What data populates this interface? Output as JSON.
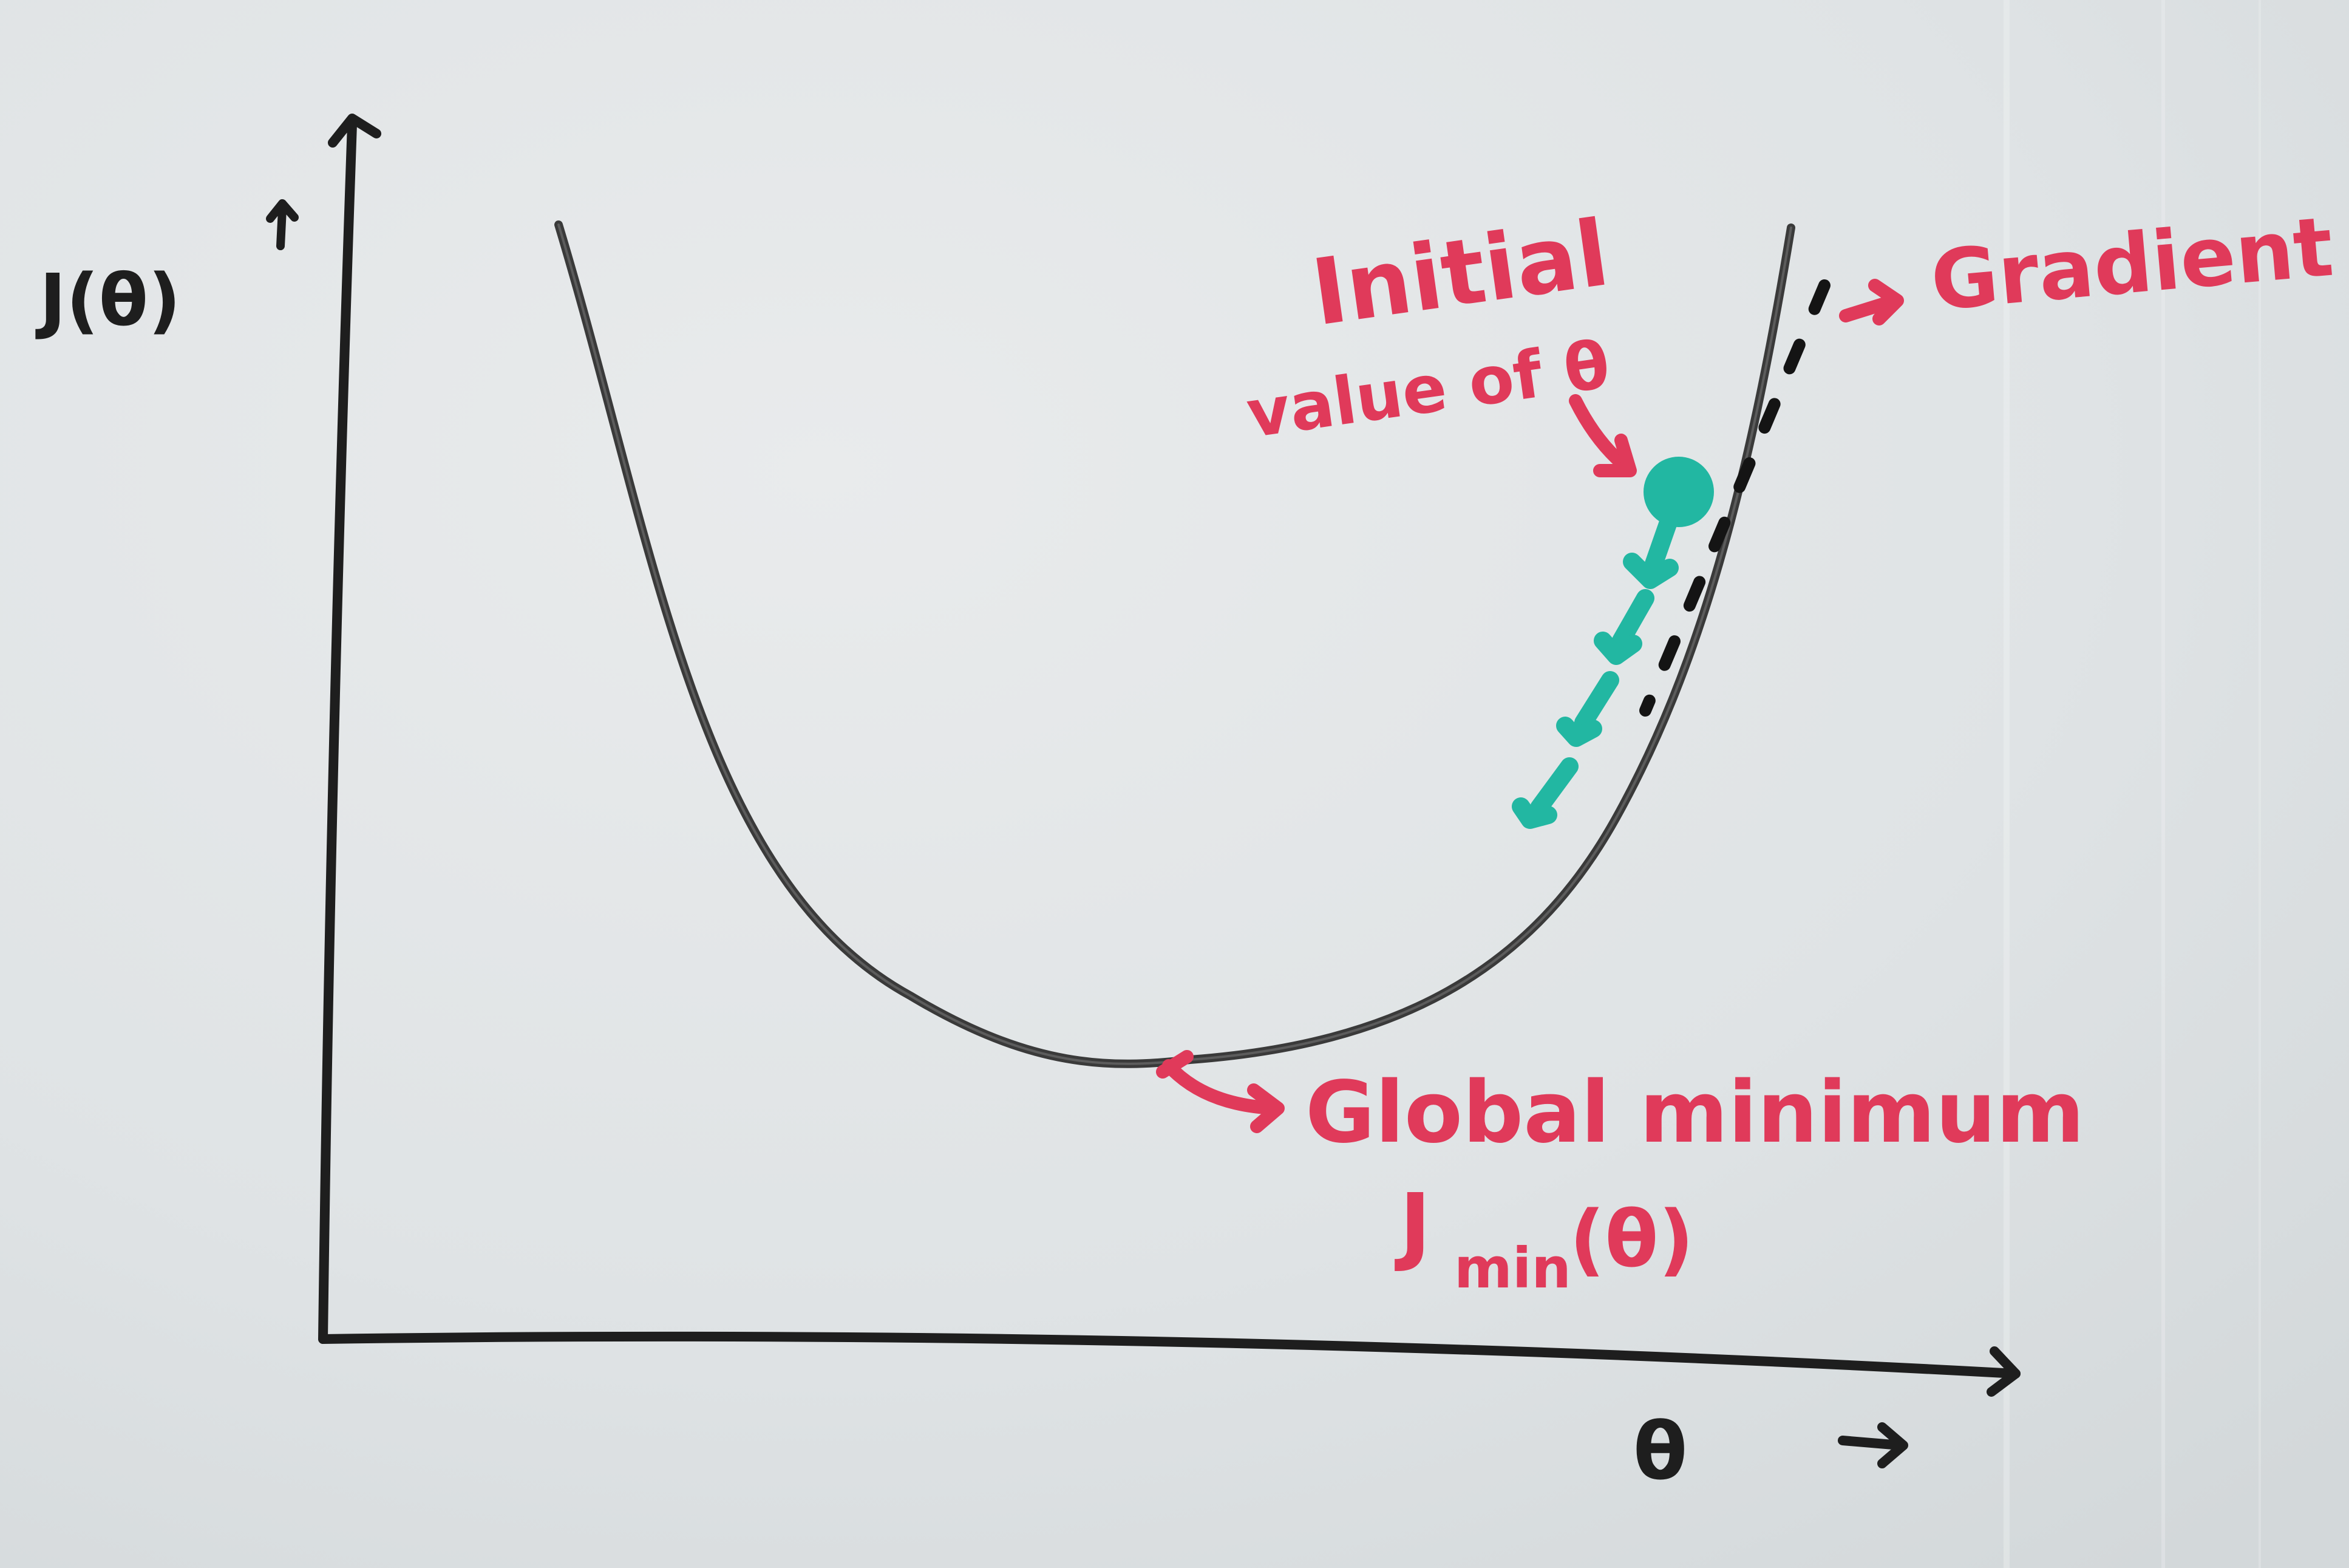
{
  "axes": {
    "y_label": "J(θ)",
    "x_label": "θ"
  },
  "annotations": {
    "initial_value_line1": "Initial",
    "initial_value_line2": "value of θ",
    "gradient": "Gradient",
    "global_minimum": "Global minimum",
    "j_min_main": "J",
    "j_min_sub": "min",
    "j_min_arg": "(θ)"
  },
  "colors": {
    "board": "#e2e5e7",
    "ink_black": "#1e1e1e",
    "ink_red": "#e03a5a",
    "ink_teal": "#22b7a2"
  }
}
